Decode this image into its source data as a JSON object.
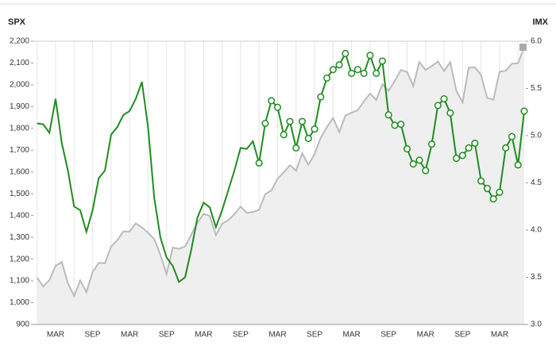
{
  "chart_data": {
    "type": "line",
    "y_title": "SPX",
    "y2_title": "IMX",
    "categories": [
      null,
      null,
      null,
      "MAR",
      null,
      null,
      null,
      null,
      null,
      "SEP",
      null,
      null,
      null,
      null,
      null,
      "MAR",
      null,
      null,
      null,
      null,
      null,
      "SEP",
      null,
      null,
      null,
      null,
      null,
      "MAR",
      null,
      null,
      null,
      null,
      null,
      "SEP",
      null,
      null,
      null,
      null,
      null,
      "MAR",
      null,
      null,
      null,
      null,
      null,
      "SEP",
      null,
      null,
      null,
      null,
      null,
      "MAR",
      null,
      null,
      null,
      null,
      null,
      "SEP",
      null,
      null,
      null,
      null,
      null,
      "MAR",
      null,
      null,
      null,
      null,
      null,
      "SEP",
      null,
      null,
      null,
      null,
      null,
      "MAR",
      null,
      null,
      null,
      null
    ],
    "series": [
      {
        "type": "area",
        "color": "#bbbbbb",
        "fill": "#efefef",
        "values": [
          1115,
          1074,
          1104,
          1169,
          1187,
          1089,
          1031,
          1102,
          1049,
          1141,
          1183,
          1181,
          1258,
          1286,
          1327,
          1326,
          1364,
          1345,
          1321,
          1292,
          1219,
          1131,
          1253,
          1247,
          1258,
          1312,
          1366,
          1408,
          1398,
          1310,
          1362,
          1379,
          1406,
          1441,
          1412,
          1416,
          1426,
          1498,
          1515,
          1569,
          1598,
          1631,
          1606,
          1686,
          1633,
          1682,
          1757,
          1806,
          1848,
          1783,
          1859,
          1872,
          1884,
          1924,
          1960,
          1931,
          2003,
          1972,
          2018,
          2068,
          2059,
          1995,
          2105,
          2068,
          2086,
          2107,
          2063,
          2104,
          1972,
          1920,
          2079,
          2080,
          2044,
          1940,
          1932,
          2060,
          2065,
          2097,
          2099,
          2174
        ]
      },
      {
        "axis": "y2",
        "color": "#1f8c1f",
        "markers": false,
        "values": [
          5.13,
          5.12,
          5.03,
          5.39,
          4.92,
          4.63,
          4.25,
          4.21,
          3.98,
          4.21,
          4.55,
          4.63,
          5.01,
          5.09,
          5.22,
          5.26,
          5.39,
          5.57,
          5.09,
          4.34,
          3.92,
          3.71,
          3.62,
          3.45,
          3.5,
          3.79,
          4.13,
          4.29,
          4.24,
          4.03,
          4.21,
          4.42,
          4.63,
          4.87,
          4.86,
          4.94,
          4.71,
          null,
          null,
          null,
          null,
          null,
          null,
          null,
          null,
          null,
          null,
          null,
          null,
          null,
          null,
          null,
          null,
          null,
          null,
          null,
          null,
          null,
          null,
          null,
          null,
          null,
          null,
          null,
          null,
          null,
          null,
          null,
          null,
          null,
          null,
          null,
          null,
          null,
          null,
          null,
          null,
          null,
          null,
          null
        ]
      },
      {
        "axis": "y2",
        "color": "#1f8c1f",
        "markers": true,
        "values": [
          null,
          null,
          null,
          null,
          null,
          null,
          null,
          null,
          null,
          null,
          null,
          null,
          null,
          null,
          null,
          null,
          null,
          null,
          null,
          null,
          null,
          null,
          null,
          null,
          null,
          null,
          null,
          null,
          null,
          null,
          null,
          null,
          null,
          null,
          null,
          null,
          4.71,
          5.13,
          5.37,
          5.3,
          5.01,
          5.15,
          4.87,
          5.15,
          4.97,
          5.07,
          5.41,
          5.61,
          5.7,
          5.75,
          5.87,
          5.66,
          5.7,
          5.66,
          5.85,
          5.66,
          5.79,
          5.22,
          5.11,
          5.12,
          4.86,
          4.7,
          4.74,
          4.63,
          4.91,
          5.32,
          5.39,
          5.24,
          4.76,
          4.79,
          4.87,
          4.92,
          4.52,
          4.44,
          4.33,
          4.4,
          4.87,
          4.99,
          4.69,
          5.26
        ]
      }
    ],
    "ylim": [
      900,
      2200
    ],
    "yticks": [
      900,
      {
        "value": 1000,
        "label": "1,000"
      },
      {
        "value": 1100,
        "label": "1,100"
      },
      {
        "value": 1200,
        "label": "1,200"
      },
      {
        "value": 1300,
        "label": "1,300"
      },
      {
        "value": 1400,
        "label": "1,400"
      },
      {
        "value": 1500,
        "label": "1,500"
      },
      {
        "value": 1600,
        "label": "1,600"
      },
      {
        "value": 1700,
        "label": "1,700"
      },
      {
        "value": 1800,
        "label": "1,800"
      },
      {
        "value": 1900,
        "label": "1,900"
      },
      {
        "value": 2000,
        "label": "2,000"
      },
      {
        "value": 2100,
        "label": "2,100"
      },
      {
        "value": 2200,
        "label": "2,200"
      }
    ],
    "y2lim": [
      3,
      6
    ],
    "y2ticks": [
      {
        "value": 3,
        "label": "3.0"
      },
      {
        "value": 3.5,
        "label": "3.5"
      },
      {
        "value": 4,
        "label": "4.0"
      },
      {
        "value": 4.5,
        "label": "4.5"
      },
      {
        "value": 5,
        "label": "5.0"
      },
      {
        "value": 5.5,
        "label": "5.5"
      },
      {
        "value": 6,
        "label": "6.0"
      }
    ]
  }
}
